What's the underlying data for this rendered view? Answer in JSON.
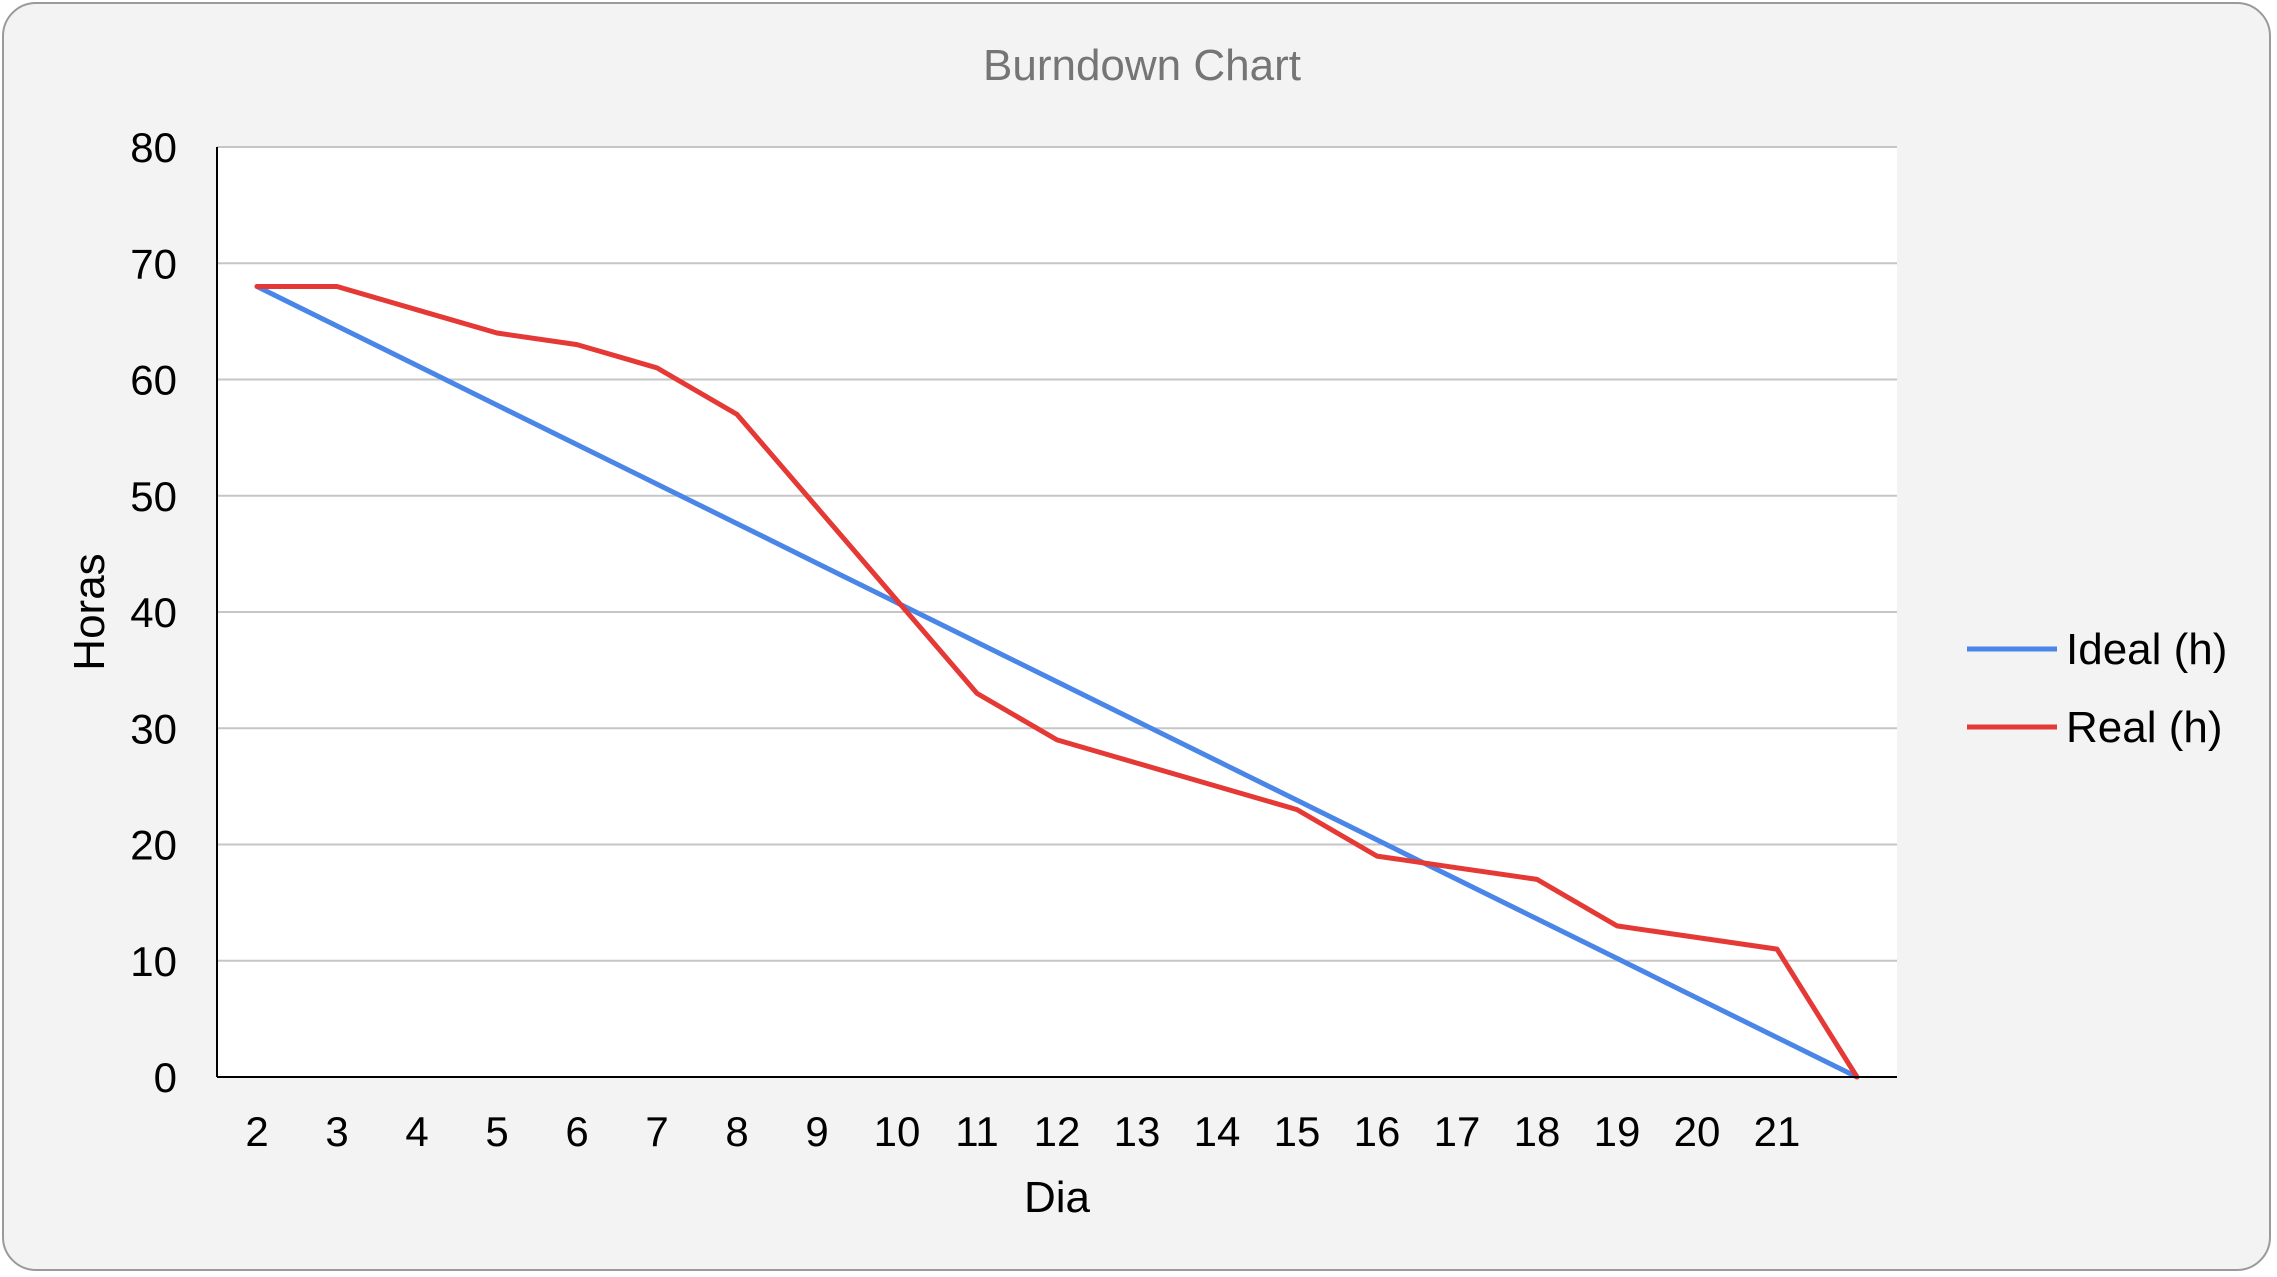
{
  "chart_data": {
    "type": "line",
    "title": "Burndown Chart",
    "xlabel": "Dia",
    "ylabel": "Horas",
    "ylim": [
      0,
      80
    ],
    "yticks": [
      0,
      10,
      20,
      30,
      40,
      50,
      60,
      70,
      80
    ],
    "grid": true,
    "legend_position": "right",
    "categories": [
      "2",
      "3",
      "4",
      "5",
      "6",
      "7",
      "8",
      "9",
      "10",
      "11",
      "12",
      "13",
      "14",
      "15",
      "16",
      "17",
      "18",
      "19",
      "20",
      "21",
      ""
    ],
    "series": [
      {
        "name": "Ideal (h)",
        "color": "#4a86e8",
        "values": [
          68,
          64.6,
          61.2,
          57.8,
          54.4,
          51,
          47.6,
          44.2,
          40.8,
          37.4,
          34,
          30.6,
          27.2,
          23.8,
          20.4,
          17,
          13.6,
          10.2,
          6.8,
          3.4,
          0
        ]
      },
      {
        "name": "Real (h)",
        "color": "#e53935",
        "values": [
          68,
          68,
          66,
          64,
          63,
          61,
          57,
          49,
          41,
          33,
          29,
          27,
          25,
          23,
          19,
          18,
          17,
          13,
          12,
          11,
          0
        ]
      }
    ]
  }
}
